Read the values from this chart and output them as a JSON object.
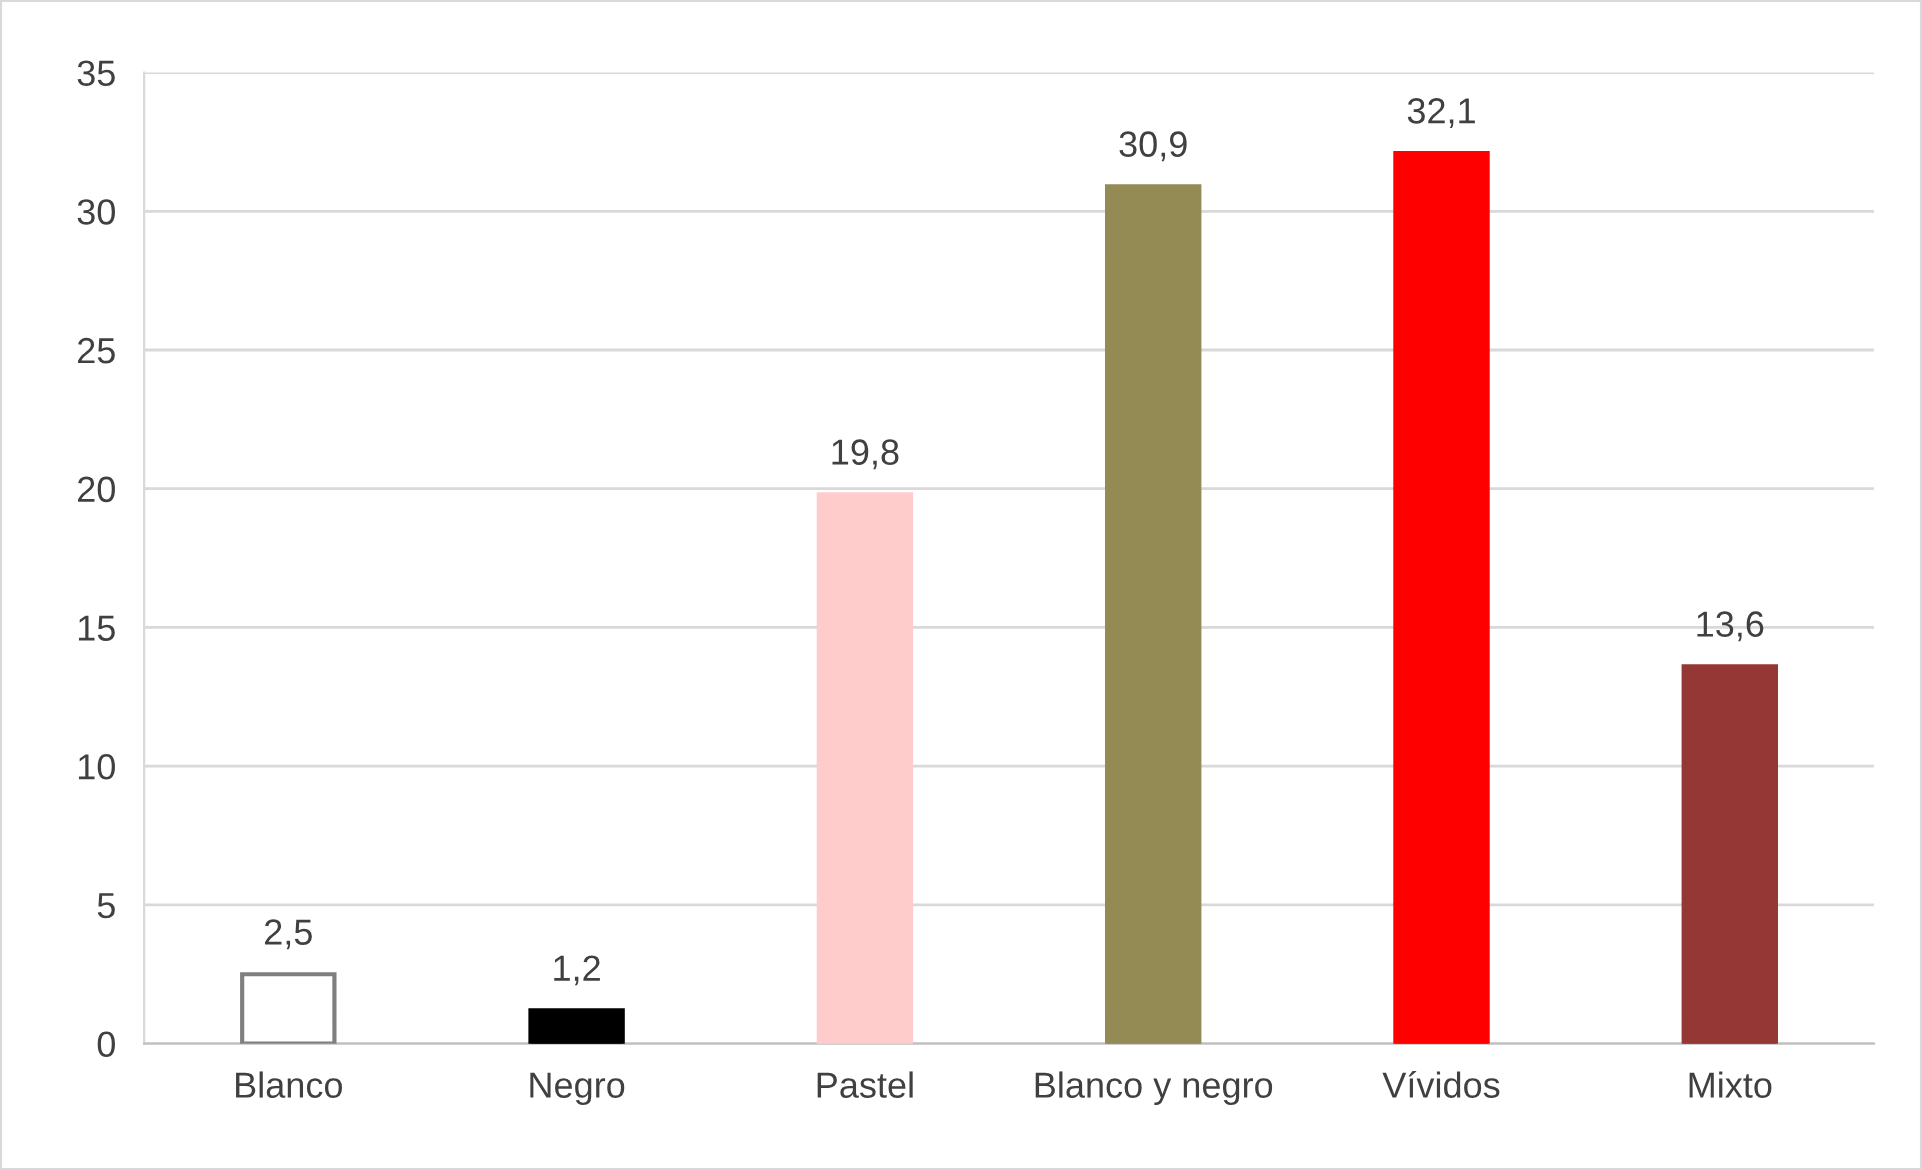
{
  "chart_data": {
    "type": "bar",
    "categories": [
      "Blanco",
      "Negro",
      "Pastel",
      "Blanco y negro",
      "Vívidos",
      "Mixto"
    ],
    "values": [
      2.5,
      1.2,
      19.8,
      30.9,
      32.1,
      13.6
    ],
    "colors": [
      "#ffffff",
      "#000000",
      "#ffcccc",
      "#948a54",
      "#ff0000",
      "#953735"
    ],
    "value_labels": [
      "2,5",
      "1,2",
      "19,8",
      "30,9",
      "32,1",
      "13,6"
    ],
    "ylim": [
      0,
      35
    ],
    "yticks": [
      0,
      5,
      10,
      15,
      20,
      25,
      30,
      35
    ],
    "grid": "y",
    "legend": false
  }
}
